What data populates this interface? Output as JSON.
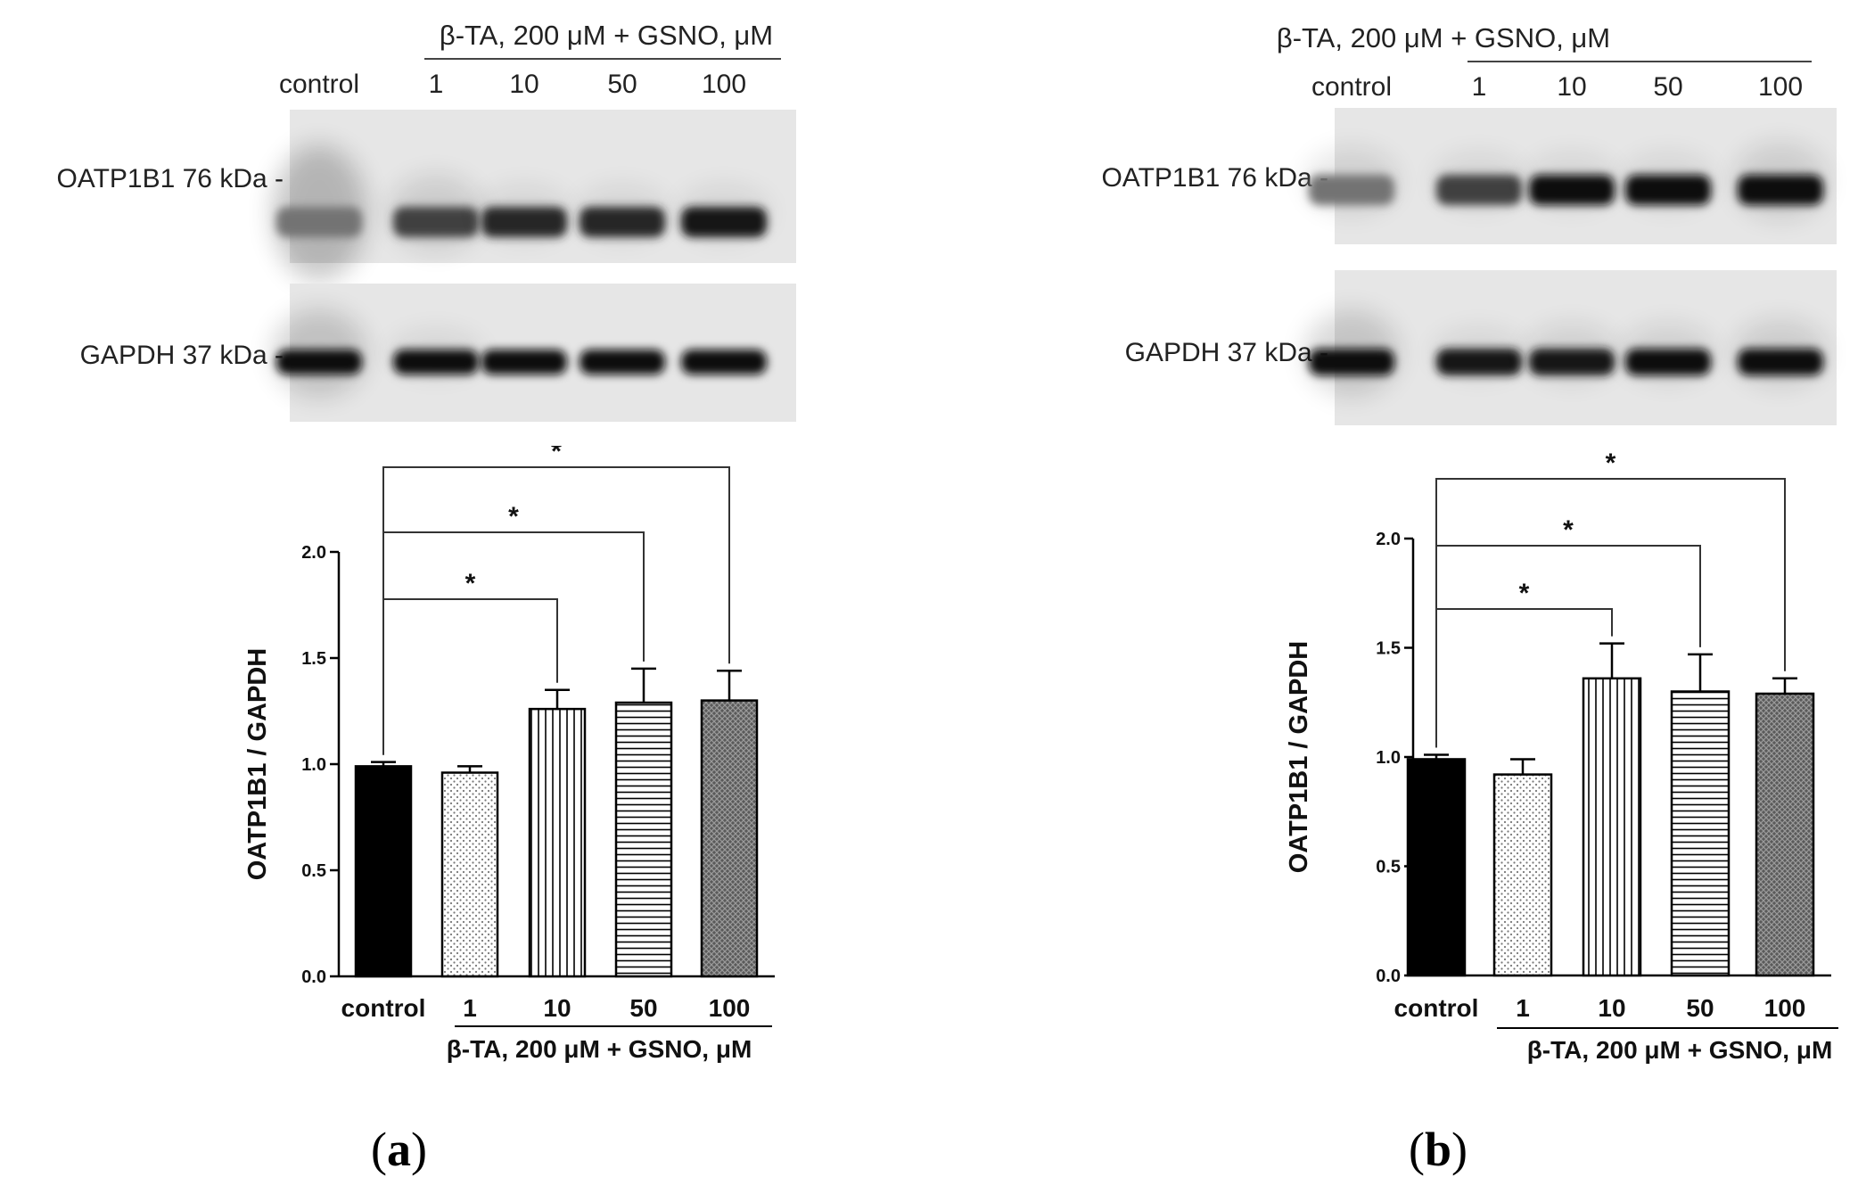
{
  "panels": [
    {
      "letter": "a",
      "blot": {
        "group_label": "β-TA, 200 μM + GSNO, μM",
        "lanes": [
          "control",
          "1",
          "10",
          "50",
          "100"
        ],
        "rows": [
          {
            "label": "OATP1B1 76 kDa -",
            "intensity": [
              0.55,
              0.75,
              0.85,
              0.85,
              0.9
            ],
            "smear": [
              0.9,
              0.3,
              0.1,
              0.1,
              0.1
            ]
          },
          {
            "label": "GAPDH  37 kDa -",
            "intensity": [
              0.95,
              0.95,
              0.95,
              0.95,
              0.95
            ],
            "smear": [
              0.6,
              0.1,
              0.05,
              0.05,
              0.05
            ]
          }
        ]
      },
      "chart_data": {
        "type": "bar",
        "ylabel": "OATP1B1 / GAPDH",
        "categories": [
          "control",
          "1",
          "10",
          "50",
          "100"
        ],
        "group_label": "β-TA, 200 μM + GSNO, μM",
        "values": [
          0.99,
          0.96,
          1.26,
          1.29,
          1.3
        ],
        "errors": [
          0.02,
          0.03,
          0.09,
          0.16,
          0.14
        ],
        "patterns": [
          "solid",
          "dots",
          "vertical",
          "horizontal",
          "crosshatch"
        ],
        "ylim": [
          0.0,
          2.0
        ],
        "yticks": [
          "0.0",
          "0.5",
          "1.0",
          "1.5",
          "2.0"
        ],
        "significance": [
          {
            "from": 0,
            "to": 2,
            "label": "*"
          },
          {
            "from": 0,
            "to": 3,
            "label": "*"
          },
          {
            "from": 0,
            "to": 4,
            "label": "*"
          }
        ]
      }
    },
    {
      "letter": "b",
      "blot": {
        "group_label": "β-TA, 200 μM + GSNO, μM",
        "lanes": [
          "control",
          "1",
          "10",
          "50",
          "100"
        ],
        "rows": [
          {
            "label": "OATP1B1 76 kDa -",
            "intensity": [
              0.55,
              0.75,
              0.95,
              0.95,
              0.95
            ],
            "smear": [
              0.2,
              0.1,
              0.1,
              0.1,
              0.3
            ]
          },
          {
            "label": "GAPDH  37 kDa -",
            "intensity": [
              0.95,
              0.9,
              0.9,
              0.95,
              0.95
            ],
            "smear": [
              0.5,
              0.1,
              0.2,
              0.2,
              0.3
            ]
          }
        ]
      },
      "chart_data": {
        "type": "bar",
        "ylabel": "OATP1B1 / GAPDH",
        "categories": [
          "control",
          "1",
          "10",
          "50",
          "100"
        ],
        "group_label": "β-TA, 200 μM + GSNO, μM",
        "values": [
          0.99,
          0.92,
          1.36,
          1.3,
          1.29
        ],
        "errors": [
          0.02,
          0.07,
          0.16,
          0.17,
          0.07
        ],
        "patterns": [
          "solid",
          "dots",
          "vertical",
          "horizontal",
          "crosshatch"
        ],
        "ylim": [
          0.0,
          2.0
        ],
        "yticks": [
          "0.0",
          "0.5",
          "1.0",
          "1.5",
          "2.0"
        ],
        "significance": [
          {
            "from": 0,
            "to": 2,
            "label": "*"
          },
          {
            "from": 0,
            "to": 3,
            "label": "*"
          },
          {
            "from": 0,
            "to": 4,
            "label": "*"
          }
        ]
      }
    }
  ]
}
